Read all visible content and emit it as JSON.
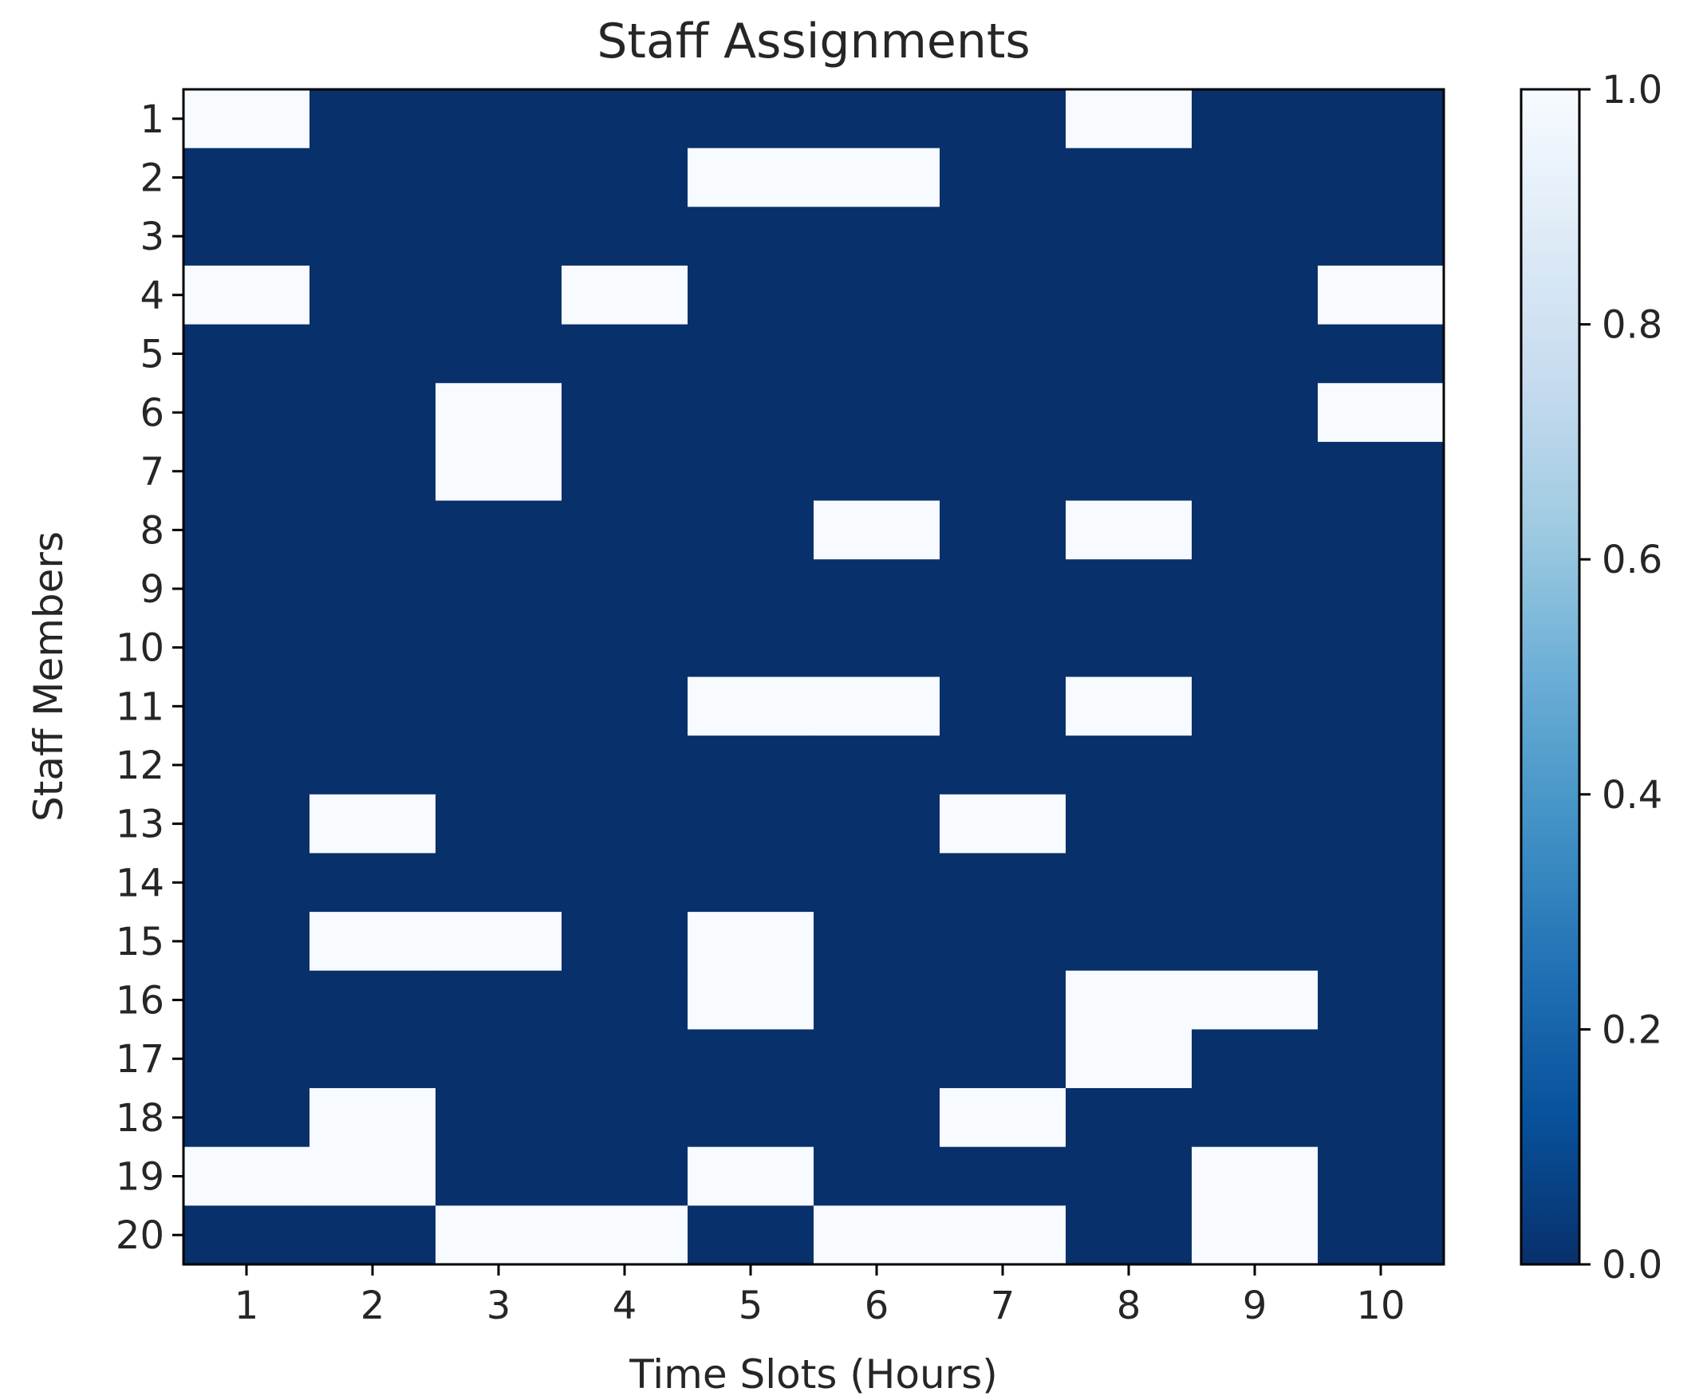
{
  "chart_data": {
    "type": "heatmap",
    "title": "Staff Assignments",
    "xlabel": "Time Slots (Hours)",
    "ylabel": "Staff Members",
    "x_categories": [
      "1",
      "2",
      "3",
      "4",
      "5",
      "6",
      "7",
      "8",
      "9",
      "10"
    ],
    "y_categories": [
      "1",
      "2",
      "3",
      "4",
      "5",
      "6",
      "7",
      "8",
      "9",
      "10",
      "11",
      "12",
      "13",
      "14",
      "15",
      "16",
      "17",
      "18",
      "19",
      "20"
    ],
    "values": [
      [
        1,
        0,
        0,
        0,
        0,
        0,
        0,
        1,
        0,
        0
      ],
      [
        0,
        0,
        0,
        0,
        1,
        1,
        0,
        0,
        0,
        0
      ],
      [
        0,
        0,
        0,
        0,
        0,
        0,
        0,
        0,
        0,
        0
      ],
      [
        1,
        0,
        0,
        1,
        0,
        0,
        0,
        0,
        0,
        1
      ],
      [
        0,
        0,
        0,
        0,
        0,
        0,
        0,
        0,
        0,
        0
      ],
      [
        0,
        0,
        1,
        0,
        0,
        0,
        0,
        0,
        0,
        1
      ],
      [
        0,
        0,
        1,
        0,
        0,
        0,
        0,
        0,
        0,
        0
      ],
      [
        0,
        0,
        0,
        0,
        0,
        1,
        0,
        1,
        0,
        0
      ],
      [
        0,
        0,
        0,
        0,
        0,
        0,
        0,
        0,
        0,
        0
      ],
      [
        0,
        0,
        0,
        0,
        0,
        0,
        0,
        0,
        0,
        0
      ],
      [
        0,
        0,
        0,
        0,
        1,
        1,
        0,
        1,
        0,
        0
      ],
      [
        0,
        0,
        0,
        0,
        0,
        0,
        0,
        0,
        0,
        0
      ],
      [
        0,
        1,
        0,
        0,
        0,
        0,
        1,
        0,
        0,
        0
      ],
      [
        0,
        0,
        0,
        0,
        0,
        0,
        0,
        0,
        0,
        0
      ],
      [
        0,
        1,
        1,
        0,
        1,
        0,
        0,
        0,
        0,
        0
      ],
      [
        0,
        0,
        0,
        0,
        1,
        0,
        0,
        1,
        1,
        0
      ],
      [
        0,
        0,
        0,
        0,
        0,
        0,
        0,
        1,
        0,
        0
      ],
      [
        0,
        1,
        0,
        0,
        0,
        0,
        1,
        0,
        0,
        0
      ],
      [
        1,
        1,
        0,
        0,
        1,
        0,
        0,
        0,
        1,
        0
      ],
      [
        0,
        0,
        1,
        1,
        0,
        1,
        1,
        0,
        1,
        0
      ]
    ],
    "colormap": "Blues_r",
    "color_low": "#08306b",
    "color_high": "#f7fbff",
    "colorbar": {
      "range": [
        0.0,
        1.0
      ],
      "ticks": [
        "0.0",
        "0.2",
        "0.4",
        "0.6",
        "0.8",
        "1.0"
      ]
    }
  }
}
